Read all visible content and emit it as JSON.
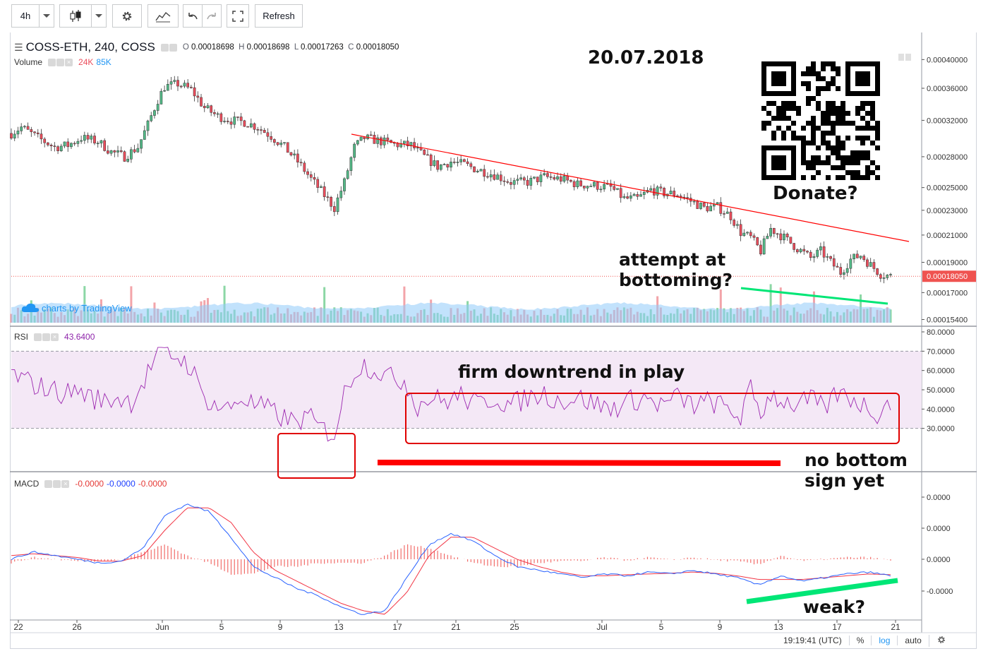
{
  "toolbar": {
    "interval": "4h",
    "refresh_label": "Refresh"
  },
  "legend": {
    "symbol": "COSS-ETH, 240, COSS",
    "o_label": "O",
    "o_value": "0.00018698",
    "h_label": "H",
    "h_value": "0.00018698",
    "l_label": "L",
    "l_value": "0.00017263",
    "c_label": "C",
    "c_value": "0.00018050",
    "volume_label": "Volume",
    "volume_value_1": "24K",
    "volume_value_2": "85K",
    "rsi_label": "RSI",
    "rsi_value": "43.6400",
    "macd_label": "MACD",
    "macd_value_1": "-0.0000",
    "macd_value_2": "-0.0000",
    "macd_value_3": "-0.0000"
  },
  "watermark": "charts by TradingView",
  "annotations": {
    "date": "20.07.2018",
    "donate": "Donate?",
    "bottoming_1": "attempt at",
    "bottoming_2": "bottoming?",
    "downtrend": "firm downtrend in play",
    "no_bottom_1": "no bottom",
    "no_bottom_2": "sign yet",
    "weak": "weak?"
  },
  "status": {
    "time": "19:19:41 (UTC)",
    "percent": "%",
    "log": "log",
    "auto": "auto"
  },
  "colors": {
    "up": "#53b987",
    "down": "#eb4d5c",
    "rsi_line": "#9c27b0",
    "rsi_band": "#f3e5f5",
    "macd_line": "#2962ff",
    "signal_line": "#f23645",
    "trend_red": "#ff0000",
    "trend_green": "#00e676",
    "price_marker": "#ef5350",
    "volume_ma": "#90caf9"
  },
  "chart_data": [
    {
      "type": "candlestick",
      "pane": "price",
      "scale": "log",
      "x_tick_labels": [
        "22",
        "26",
        "Jun",
        "5",
        "9",
        "13",
        "17",
        "21",
        "25",
        "Jul",
        "5",
        "9",
        "13",
        "17",
        "21"
      ],
      "y_tick_labels": [
        "0.00040000",
        "0.00036000",
        "0.00032000",
        "0.00028000",
        "0.00025000",
        "0.00023000",
        "0.00021000",
        "0.00019000",
        "0.00017000",
        "0.00015400"
      ],
      "y_ticks": [
        0.0004,
        0.00036,
        0.00032,
        0.00028,
        0.00025,
        0.00023,
        0.00021,
        0.00019,
        0.00017,
        0.000154
      ],
      "last_price_label": "0.00018050",
      "last_price": 0.0001805,
      "close_series": [
        {
          "x": 0,
          "y": 0.000305
        },
        {
          "x": 3,
          "y": 0.000312
        },
        {
          "x": 8,
          "y": 0.0003
        },
        {
          "x": 13,
          "y": 0.00029
        },
        {
          "x": 17,
          "y": 0.000292
        },
        {
          "x": 21,
          "y": 0.0003
        },
        {
          "x": 26,
          "y": 0.000296
        },
        {
          "x": 30,
          "y": 0.000285
        },
        {
          "x": 34,
          "y": 0.00028
        },
        {
          "x": 38,
          "y": 0.00029
        },
        {
          "x": 41,
          "y": 0.000315
        },
        {
          "x": 44,
          "y": 0.000345
        },
        {
          "x": 46,
          "y": 0.000362
        },
        {
          "x": 50,
          "y": 0.000366
        },
        {
          "x": 54,
          "y": 0.000358
        },
        {
          "x": 58,
          "y": 0.000335
        },
        {
          "x": 62,
          "y": 0.000325
        },
        {
          "x": 66,
          "y": 0.00032
        },
        {
          "x": 70,
          "y": 0.000318
        },
        {
          "x": 74,
          "y": 0.000312
        },
        {
          "x": 78,
          "y": 0.000302
        },
        {
          "x": 82,
          "y": 0.00029
        },
        {
          "x": 86,
          "y": 0.000275
        },
        {
          "x": 90,
          "y": 0.000258
        },
        {
          "x": 94,
          "y": 0.000243
        },
        {
          "x": 97,
          "y": 0.000232
        },
        {
          "x": 100,
          "y": 0.000255
        },
        {
          "x": 103,
          "y": 0.00029
        },
        {
          "x": 106,
          "y": 0.0003
        },
        {
          "x": 110,
          "y": 0.000297
        },
        {
          "x": 115,
          "y": 0.000293
        },
        {
          "x": 120,
          "y": 0.000292
        },
        {
          "x": 124,
          "y": 0.00028
        },
        {
          "x": 128,
          "y": 0.00027
        },
        {
          "x": 132,
          "y": 0.000275
        },
        {
          "x": 136,
          "y": 0.000272
        },
        {
          "x": 140,
          "y": 0.000267
        },
        {
          "x": 145,
          "y": 0.000262
        },
        {
          "x": 150,
          "y": 0.000255
        },
        {
          "x": 155,
          "y": 0.000255
        },
        {
          "x": 160,
          "y": 0.00026
        },
        {
          "x": 165,
          "y": 0.000258
        },
        {
          "x": 170,
          "y": 0.000253
        },
        {
          "x": 175,
          "y": 0.000252
        },
        {
          "x": 180,
          "y": 0.00025
        },
        {
          "x": 184,
          "y": 0.00024
        },
        {
          "x": 188,
          "y": 0.00024
        },
        {
          "x": 192,
          "y": 0.000248
        },
        {
          "x": 196,
          "y": 0.000245
        },
        {
          "x": 200,
          "y": 0.000244
        },
        {
          "x": 204,
          "y": 0.000238
        },
        {
          "x": 208,
          "y": 0.000232
        },
        {
          "x": 212,
          "y": 0.000233
        },
        {
          "x": 216,
          "y": 0.000225
        },
        {
          "x": 219,
          "y": 0.000212
        },
        {
          "x": 222,
          "y": 0.000208
        },
        {
          "x": 225,
          "y": 0.000198
        },
        {
          "x": 228,
          "y": 0.000215
        },
        {
          "x": 232,
          "y": 0.000208
        },
        {
          "x": 236,
          "y": 0.0002
        },
        {
          "x": 240,
          "y": 0.000193
        },
        {
          "x": 243,
          "y": 0.000198
        },
        {
          "x": 246,
          "y": 0.00019
        },
        {
          "x": 249,
          "y": 0.000183
        },
        {
          "x": 252,
          "y": 0.000192
        },
        {
          "x": 255,
          "y": 0.000195
        },
        {
          "x": 258,
          "y": 0.000188
        },
        {
          "x": 261,
          "y": 0.000182
        },
        {
          "x": 264,
          "y": 0.0001805
        }
      ]
    },
    {
      "type": "bar",
      "pane": "volume",
      "series": [
        {
          "name": "24K",
          "values_note": "up-volume"
        },
        {
          "name": "85K",
          "values_note": "moving average"
        }
      ]
    },
    {
      "type": "line",
      "pane": "rsi",
      "y_tick_labels": [
        "80.0000",
        "70.0000",
        "60.0000",
        "50.0000",
        "40.0000",
        "30.0000"
      ],
      "y_ticks": [
        80,
        70,
        60,
        50,
        40,
        30
      ],
      "band": [
        30,
        70
      ],
      "current": 43.64,
      "series": [
        {
          "x": 0,
          "y": 58
        },
        {
          "x": 4,
          "y": 55
        },
        {
          "x": 8,
          "y": 52
        },
        {
          "x": 12,
          "y": 50
        },
        {
          "x": 16,
          "y": 48
        },
        {
          "x": 20,
          "y": 50
        },
        {
          "x": 24,
          "y": 46
        },
        {
          "x": 28,
          "y": 44
        },
        {
          "x": 32,
          "y": 46
        },
        {
          "x": 36,
          "y": 44
        },
        {
          "x": 40,
          "y": 55
        },
        {
          "x": 43,
          "y": 66
        },
        {
          "x": 46,
          "y": 69
        },
        {
          "x": 50,
          "y": 67
        },
        {
          "x": 54,
          "y": 62
        },
        {
          "x": 57,
          "y": 48
        },
        {
          "x": 61,
          "y": 42
        },
        {
          "x": 65,
          "y": 40
        },
        {
          "x": 69,
          "y": 46
        },
        {
          "x": 73,
          "y": 42
        },
        {
          "x": 77,
          "y": 40
        },
        {
          "x": 81,
          "y": 36
        },
        {
          "x": 85,
          "y": 33
        },
        {
          "x": 89,
          "y": 36
        },
        {
          "x": 93,
          "y": 30
        },
        {
          "x": 97,
          "y": 27
        },
        {
          "x": 100,
          "y": 48
        },
        {
          "x": 103,
          "y": 60
        },
        {
          "x": 106,
          "y": 63
        },
        {
          "x": 110,
          "y": 60
        },
        {
          "x": 114,
          "y": 56
        },
        {
          "x": 118,
          "y": 55
        },
        {
          "x": 122,
          "y": 42
        },
        {
          "x": 126,
          "y": 46
        },
        {
          "x": 130,
          "y": 44
        },
        {
          "x": 135,
          "y": 47
        },
        {
          "x": 140,
          "y": 42
        },
        {
          "x": 145,
          "y": 46
        },
        {
          "x": 150,
          "y": 42
        },
        {
          "x": 155,
          "y": 46
        },
        {
          "x": 160,
          "y": 48
        },
        {
          "x": 165,
          "y": 44
        },
        {
          "x": 170,
          "y": 46
        },
        {
          "x": 175,
          "y": 43
        },
        {
          "x": 180,
          "y": 40
        },
        {
          "x": 185,
          "y": 44
        },
        {
          "x": 190,
          "y": 46
        },
        {
          "x": 195,
          "y": 42
        },
        {
          "x": 200,
          "y": 46
        },
        {
          "x": 205,
          "y": 42
        },
        {
          "x": 210,
          "y": 44
        },
        {
          "x": 215,
          "y": 40
        },
        {
          "x": 219,
          "y": 36
        },
        {
          "x": 222,
          "y": 50
        },
        {
          "x": 225,
          "y": 38
        },
        {
          "x": 228,
          "y": 48
        },
        {
          "x": 232,
          "y": 44
        },
        {
          "x": 236,
          "y": 42
        },
        {
          "x": 240,
          "y": 45
        },
        {
          "x": 244,
          "y": 40
        },
        {
          "x": 248,
          "y": 48
        },
        {
          "x": 252,
          "y": 46
        },
        {
          "x": 256,
          "y": 42
        },
        {
          "x": 260,
          "y": 38
        },
        {
          "x": 264,
          "y": 43.64
        }
      ]
    },
    {
      "type": "line",
      "pane": "macd",
      "y_tick_labels": [
        "0.0000",
        "0.0000",
        "0.0000",
        "-0.0000"
      ],
      "series": [
        {
          "name": "MACD",
          "values": [
            0.0,
            0.2,
            0.1,
            0.0,
            -0.1,
            -0.05,
            0.3,
            1.2,
            1.5,
            1.3,
            0.6,
            -0.2,
            -0.5,
            -0.8,
            -1.0,
            -1.3,
            -1.5,
            -1.4,
            -0.5,
            0.4,
            0.7,
            0.5,
            0.1,
            -0.2,
            -0.3,
            -0.4,
            -0.5,
            -0.4,
            -0.45,
            -0.35,
            -0.4,
            -0.3,
            -0.4,
            -0.5,
            -0.7,
            -0.45,
            -0.6,
            -0.5,
            -0.4,
            -0.35,
            -0.45
          ]
        },
        {
          "name": "Signal",
          "values": [
            0.1,
            0.15,
            0.1,
            0.05,
            -0.05,
            -0.05,
            0.1,
            0.8,
            1.4,
            1.4,
            1.0,
            0.2,
            -0.3,
            -0.6,
            -0.9,
            -1.2,
            -1.4,
            -1.5,
            -0.9,
            0.1,
            0.6,
            0.6,
            0.3,
            0.0,
            -0.2,
            -0.35,
            -0.45,
            -0.45,
            -0.42,
            -0.4,
            -0.38,
            -0.35,
            -0.38,
            -0.45,
            -0.55,
            -0.55,
            -0.55,
            -0.5,
            -0.45,
            -0.4,
            -0.42
          ]
        }
      ]
    }
  ]
}
